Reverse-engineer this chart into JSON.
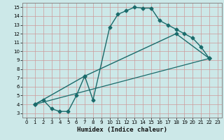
{
  "title": "",
  "xlabel": "Humidex (Indice chaleur)",
  "bg_color": "#cce8e8",
  "grid_color": "#aacccc",
  "line_color": "#1a6b6b",
  "xlim": [
    -0.5,
    23.5
  ],
  "ylim": [
    2.5,
    15.5
  ],
  "xticks": [
    0,
    1,
    2,
    3,
    4,
    5,
    6,
    7,
    8,
    9,
    10,
    11,
    12,
    13,
    14,
    15,
    16,
    17,
    18,
    19,
    20,
    21,
    22,
    23
  ],
  "yticks": [
    3,
    4,
    5,
    6,
    7,
    8,
    9,
    10,
    11,
    12,
    13,
    14,
    15
  ],
  "line1_x": [
    1,
    2,
    3,
    4,
    5,
    6,
    7,
    8,
    10,
    11,
    12,
    13,
    14,
    15,
    16,
    17,
    18,
    19,
    20,
    21,
    22
  ],
  "line1_y": [
    4.0,
    4.5,
    3.5,
    3.2,
    3.2,
    5.0,
    7.2,
    4.5,
    12.7,
    14.2,
    14.6,
    15.0,
    14.9,
    14.9,
    13.5,
    13.0,
    12.5,
    12.0,
    11.5,
    10.5,
    9.2
  ],
  "line2_x": [
    1,
    7,
    18,
    22
  ],
  "line2_y": [
    4.0,
    7.2,
    12.0,
    9.2
  ],
  "line3_x": [
    1,
    22
  ],
  "line3_y": [
    4.0,
    9.2
  ]
}
